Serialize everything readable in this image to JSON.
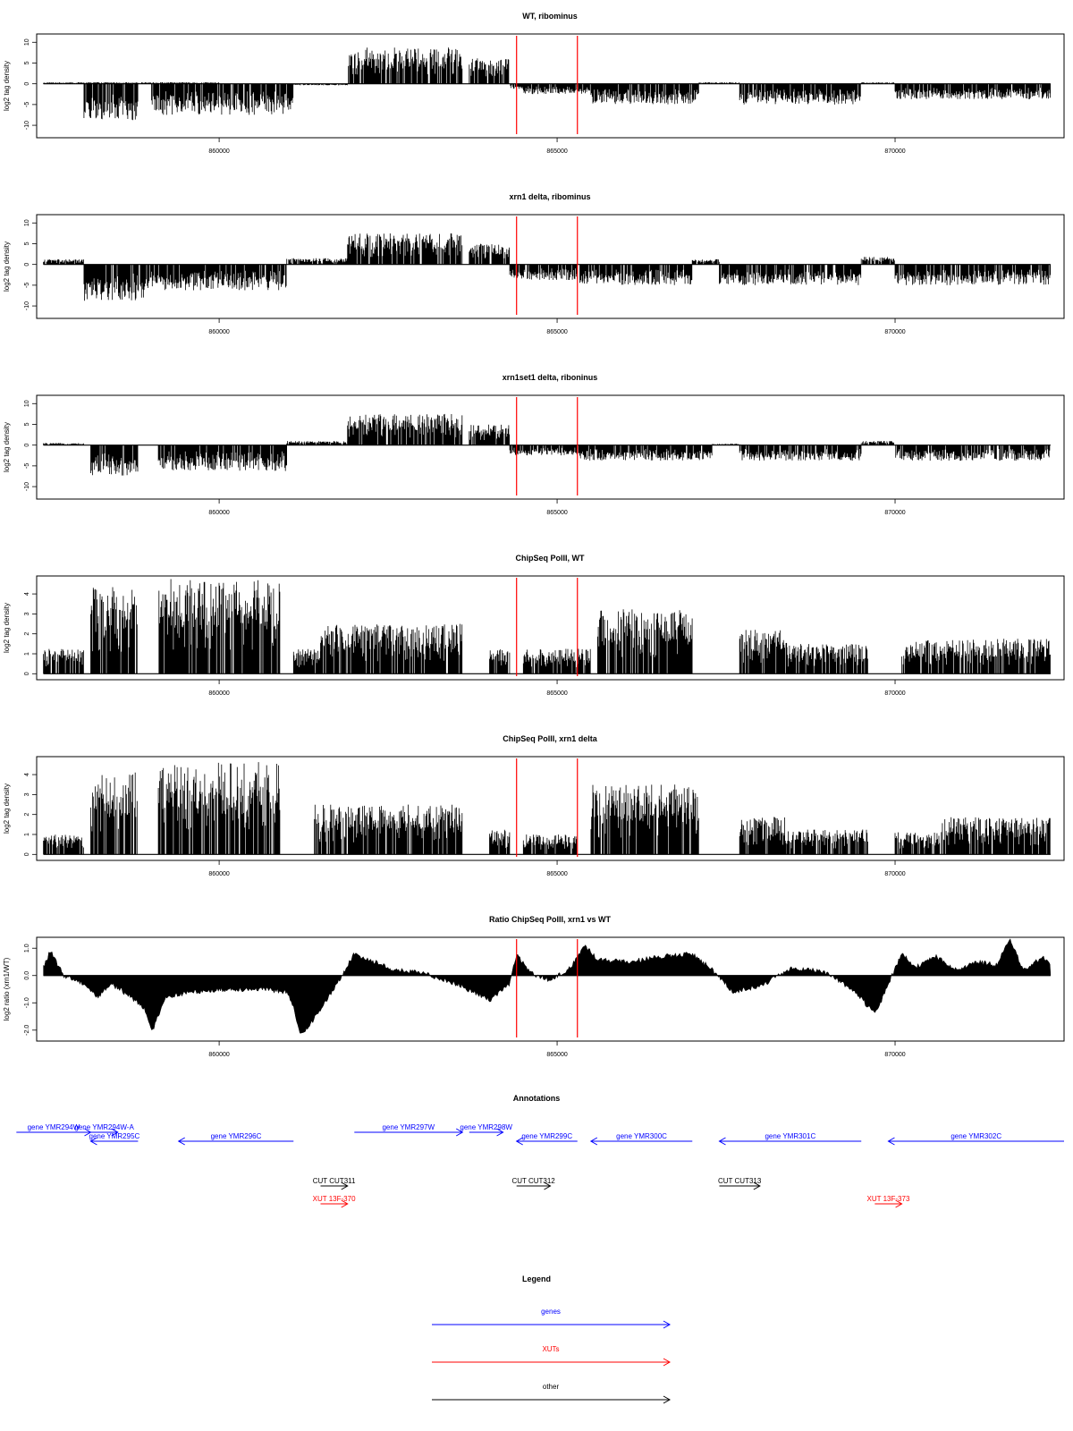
{
  "colors": {
    "bars": "#000000",
    "marker": "#ff0000",
    "genes": "#0000ff",
    "xuts": "#ff0000",
    "other": "#000000"
  },
  "chart_data": [
    {
      "type": "bar",
      "title": "WT, ribominus",
      "ylabel": "log2 tag density",
      "xlim": [
        857300,
        872500
      ],
      "ylim": [
        -13,
        12
      ],
      "x_ticks": [
        860000,
        865000,
        870000
      ],
      "y_ticks": [
        -10,
        -5,
        0,
        5,
        10
      ],
      "markers": [
        864400,
        865300
      ],
      "series": [
        {
          "values": [
            [
              857400,
              860000,
              0.3
            ],
            [
              858000,
              858800,
              -7
            ],
            [
              859000,
              861100,
              -6
            ],
            [
              861100,
              861900,
              -0.3
            ],
            [
              861900,
              863600,
              7
            ],
            [
              863700,
              864300,
              5
            ],
            [
              864300,
              864500,
              -1
            ],
            [
              864500,
              865500,
              -2
            ],
            [
              865500,
              867100,
              -4
            ],
            [
              867100,
              867700,
              0.3
            ],
            [
              867700,
              869500,
              -4
            ],
            [
              869500,
              870000,
              0.3
            ],
            [
              870000,
              872300,
              -3
            ]
          ]
        }
      ]
    },
    {
      "type": "bar",
      "title": "xrn1 delta, ribominus",
      "ylabel": "log2 tag density",
      "xlim": [
        857300,
        872500
      ],
      "ylim": [
        -13,
        12
      ],
      "x_ticks": [
        860000,
        865000,
        870000
      ],
      "y_ticks": [
        -10,
        -5,
        0,
        5,
        10
      ],
      "markers": [
        864400,
        865300
      ],
      "series": [
        {
          "values": [
            [
              857400,
              858000,
              1
            ],
            [
              858000,
              858900,
              -7
            ],
            [
              858900,
              861000,
              -5
            ],
            [
              861000,
              861900,
              1.2
            ],
            [
              861900,
              863600,
              6
            ],
            [
              863700,
              864300,
              4
            ],
            [
              864300,
              865300,
              -3
            ],
            [
              865300,
              867000,
              -4
            ],
            [
              867000,
              867400,
              1
            ],
            [
              867400,
              869500,
              -4
            ],
            [
              869500,
              870000,
              1.5
            ],
            [
              870000,
              872300,
              -4
            ]
          ]
        }
      ]
    },
    {
      "type": "bar",
      "title": "xrn1set1 delta, riboninus",
      "ylabel": "log2 tag density",
      "xlim": [
        857300,
        872500
      ],
      "ylim": [
        -13,
        12
      ],
      "x_ticks": [
        860000,
        865000,
        870000
      ],
      "y_ticks": [
        -10,
        -5,
        0,
        5,
        10
      ],
      "markers": [
        864400,
        865300
      ],
      "series": [
        {
          "values": [
            [
              857400,
              858000,
              0.4
            ],
            [
              858100,
              858800,
              -6
            ],
            [
              859100,
              861000,
              -5
            ],
            [
              861000,
              861900,
              0.8
            ],
            [
              861900,
              863600,
              6
            ],
            [
              863700,
              864300,
              4
            ],
            [
              864300,
              865300,
              -2
            ],
            [
              865300,
              867300,
              -3
            ],
            [
              867300,
              867700,
              0.3
            ],
            [
              867700,
              869500,
              -3
            ],
            [
              869500,
              870000,
              0.8
            ],
            [
              870000,
              872300,
              -3
            ]
          ]
        }
      ]
    },
    {
      "type": "bar",
      "title": "ChipSeq PolII, WT",
      "ylabel": "log2 tag density",
      "xlim": [
        857300,
        872500
      ],
      "ylim": [
        -0.3,
        4.9
      ],
      "x_ticks": [
        860000,
        865000,
        870000
      ],
      "y_ticks": [
        0,
        1,
        2,
        3,
        4
      ],
      "markers": [
        864400,
        865300
      ],
      "series": [
        {
          "values": [
            [
              857400,
              858000,
              1
            ],
            [
              858100,
              858800,
              3.5
            ],
            [
              859100,
              860900,
              3.8
            ],
            [
              861100,
              861500,
              1
            ],
            [
              861500,
              863600,
              2
            ],
            [
              864000,
              864300,
              1
            ],
            [
              864500,
              865500,
              1
            ],
            [
              865600,
              867000,
              2.6
            ],
            [
              867700,
              868400,
              1.8
            ],
            [
              868400,
              869600,
              1.2
            ],
            [
              870100,
              872300,
              1.4
            ]
          ]
        }
      ]
    },
    {
      "type": "bar",
      "title": "ChipSeq PolII, xrn1 delta",
      "ylabel": "log2 tag density",
      "xlim": [
        857300,
        872500
      ],
      "ylim": [
        -0.3,
        4.9
      ],
      "x_ticks": [
        860000,
        865000,
        870000
      ],
      "y_ticks": [
        0,
        1,
        2,
        3,
        4
      ],
      "markers": [
        864400,
        865300
      ],
      "series": [
        {
          "values": [
            [
              857400,
              858000,
              0.8
            ],
            [
              858100,
              858800,
              3.3
            ],
            [
              859100,
              860900,
              3.7
            ],
            [
              861400,
              863600,
              2
            ],
            [
              864000,
              864300,
              1
            ],
            [
              864500,
              865300,
              0.8
            ],
            [
              865500,
              867100,
              2.8
            ],
            [
              867700,
              868400,
              1.5
            ],
            [
              868400,
              869600,
              1
            ],
            [
              870000,
              870700,
              0.9
            ],
            [
              870700,
              872300,
              1.5
            ]
          ]
        }
      ]
    },
    {
      "type": "area",
      "title": "Ratio ChipSeq PolII, xrn1 vs WT",
      "ylabel": "log2 ratio (xrn1/WT)",
      "xlim": [
        857300,
        872500
      ],
      "ylim": [
        -2.4,
        1.4
      ],
      "x_ticks": [
        860000,
        865000,
        870000
      ],
      "y_ticks": [
        -2.0,
        -1.0,
        0.0,
        1.0
      ],
      "y_tick_labels": [
        "-2.0",
        "-1.0",
        "0.0",
        "1.0"
      ],
      "markers": [
        864400,
        865300
      ],
      "series": [
        {
          "x": [
            857400,
            857500,
            857700,
            858000,
            858200,
            858400,
            858700,
            858900,
            859000,
            859200,
            859600,
            860200,
            860600,
            861000,
            861100,
            861200,
            861400,
            861700,
            862000,
            862200,
            862600,
            863000,
            863500,
            864000,
            864300,
            864400,
            864600,
            864900,
            865200,
            865400,
            865600,
            866000,
            866600,
            867000,
            867300,
            867600,
            868000,
            868500,
            869000,
            869400,
            869700,
            869800,
            869900,
            870100,
            870300,
            870600,
            870900,
            871200,
            871500,
            871700,
            871900,
            872200,
            872300
          ],
          "y": [
            0.3,
            0.9,
            0.0,
            -0.3,
            -0.8,
            -0.3,
            -0.8,
            -1.2,
            -2.1,
            -0.8,
            -0.6,
            -0.5,
            -0.5,
            -0.6,
            -1.2,
            -2.2,
            -1.6,
            -0.5,
            0.8,
            0.6,
            0.2,
            0.1,
            -0.3,
            -0.9,
            -0.3,
            0.8,
            0.1,
            -0.2,
            0.3,
            1.1,
            0.6,
            0.5,
            0.7,
            0.8,
            0.2,
            -0.6,
            -0.4,
            0.3,
            0.1,
            -0.6,
            -1.4,
            -0.9,
            -0.3,
            0.8,
            0.3,
            0.7,
            0.2,
            0.5,
            0.4,
            1.3,
            0.2,
            0.7,
            0.3
          ]
        }
      ]
    }
  ],
  "annotations": {
    "title": "Annotations",
    "features": [
      {
        "label": "gene YMR294W",
        "type": "genes",
        "start": 857000,
        "end": 858100,
        "row": 0
      },
      {
        "label": "gene YMR294W-A",
        "type": "genes",
        "start": 858100,
        "end": 858500,
        "row": 0
      },
      {
        "label": "gene YMR295C",
        "type": "genes",
        "start": 858800,
        "end": 858100,
        "row": 1
      },
      {
        "label": "gene YMR296C",
        "type": "genes",
        "start": 861100,
        "end": 859400,
        "row": 1
      },
      {
        "label": "gene YMR297W",
        "type": "genes",
        "start": 862000,
        "end": 863600,
        "row": 0
      },
      {
        "label": "gene YMR298W",
        "type": "genes",
        "start": 863700,
        "end": 864200,
        "row": 0
      },
      {
        "label": "gene YMR299C",
        "type": "genes",
        "start": 865300,
        "end": 864400,
        "row": 1
      },
      {
        "label": "gene YMR300C",
        "type": "genes",
        "start": 867000,
        "end": 865500,
        "row": 1
      },
      {
        "label": "gene YMR301C",
        "type": "genes",
        "start": 869500,
        "end": 867400,
        "row": 1
      },
      {
        "label": "gene YMR302C",
        "type": "genes",
        "start": 872500,
        "end": 869900,
        "row": 1
      },
      {
        "label": "CUT CUT311",
        "type": "other",
        "start": 861500,
        "end": 861900,
        "row": 2
      },
      {
        "label": "CUT CUT312",
        "type": "other",
        "start": 864400,
        "end": 864900,
        "row": 2
      },
      {
        "label": "CUT CUT313",
        "type": "other",
        "start": 867400,
        "end": 868000,
        "row": 2
      },
      {
        "label": "XUT 13F-370",
        "type": "xuts",
        "start": 861500,
        "end": 861900,
        "row": 3
      },
      {
        "label": "XUT 13F-373",
        "type": "xuts",
        "start": 869700,
        "end": 870100,
        "row": 3
      }
    ]
  },
  "legend": {
    "title": "Legend",
    "items": [
      {
        "label": "genes",
        "color": "#0000ff"
      },
      {
        "label": "XUTs",
        "color": "#ff0000"
      },
      {
        "label": "other",
        "color": "#000000"
      }
    ]
  }
}
